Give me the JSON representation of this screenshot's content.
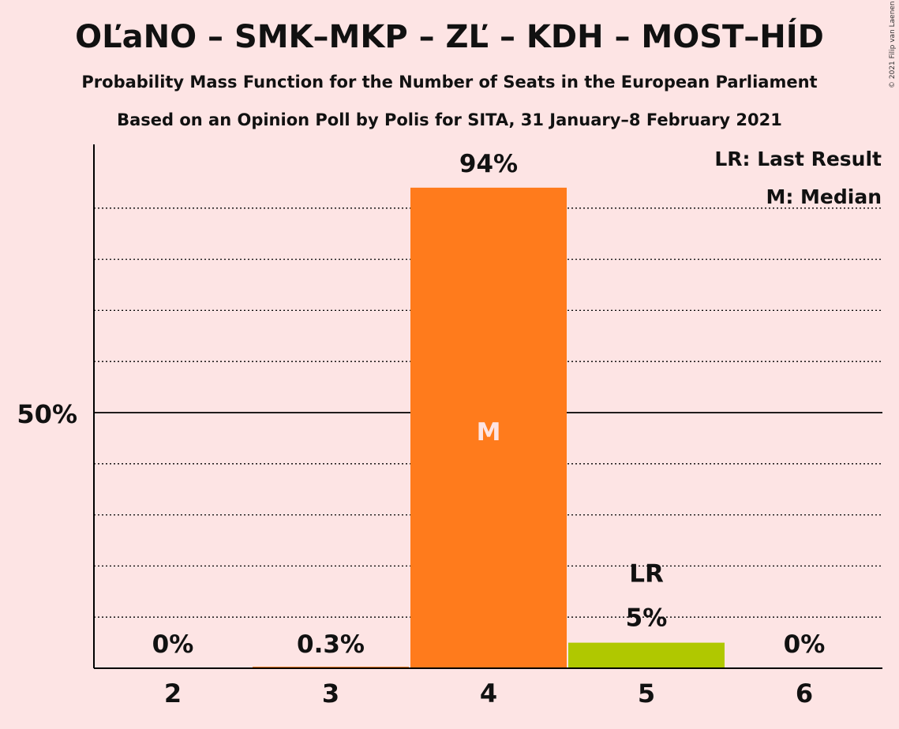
{
  "title": "OĽaNO – SMK–MKP – ZĽ – KDH – MOST–HÍD",
  "subtitle": "Probability Mass Function for the Number of Seats in the European Parliament",
  "subtitle2": "Based on an Opinion Poll by Polis for SITA, 31 January–8 February 2021",
  "copyright": "© 2021 Filip van Laenen",
  "legend": {
    "last_result": "LR: Last Result",
    "median": "M: Median"
  },
  "colors": {
    "background": "#fde4e4",
    "median_bar": "#ff7b1c",
    "last_result_bar": "#b0c800",
    "default_bar": "#ff7b1c"
  },
  "chart_data": {
    "type": "bar",
    "categories": [
      "2",
      "3",
      "4",
      "5",
      "6"
    ],
    "values": [
      0,
      0.3,
      94,
      5,
      0
    ],
    "value_labels": [
      "0%",
      "0.3%",
      "94%",
      "5%",
      "0%"
    ],
    "median_category": "4",
    "median_marker": "M",
    "last_result_category": "5",
    "last_result_marker": "LR",
    "ylim": [
      0,
      100
    ],
    "y_tick_label": "50%",
    "y_tick_value": 50,
    "minor_gridlines": [
      10,
      20,
      30,
      40,
      60,
      70,
      80,
      90
    ],
    "legend_position": "top-right"
  }
}
